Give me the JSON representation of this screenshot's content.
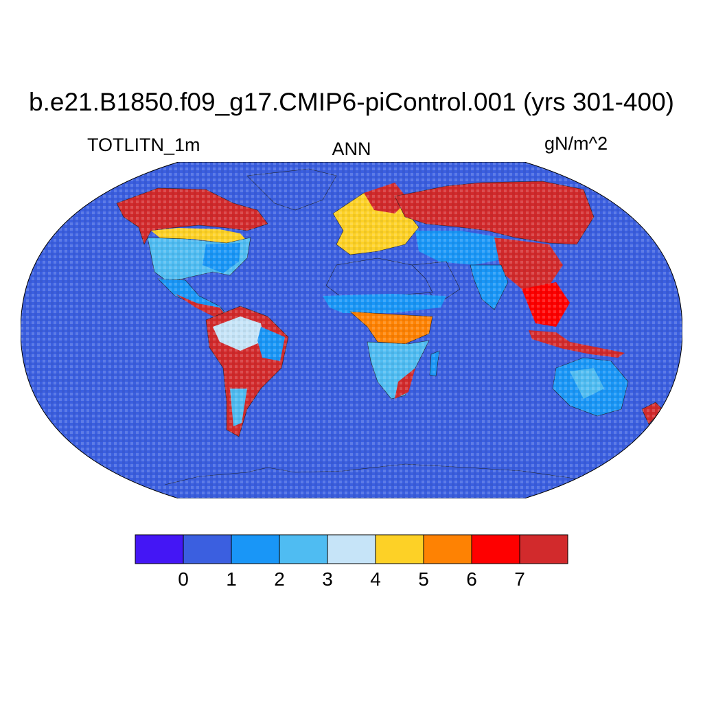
{
  "title": "b.e21.B1850.f09_g17.CMIP6-piControl.001 (yrs 301-400)",
  "subtitle_left": "TOTLITN_1m",
  "subtitle_center": "ANN",
  "subtitle_right": "gN/m^2",
  "ocean_color": "#3b5fe0",
  "colorbar": {
    "levels": [
      "0",
      "1",
      "2",
      "3",
      "4",
      "5",
      "6",
      "7"
    ],
    "colors": [
      "#4416f5",
      "#3b5fe0",
      "#1996f7",
      "#4fbcf2",
      "#c6e4f8",
      "#fdd126",
      "#fe8203",
      "#fe0000",
      "#d22a2c"
    ]
  },
  "regions": [
    {
      "name": "Canada boreal",
      "color": "#d22a2c"
    },
    {
      "name": "United States",
      "color": "#4fbcf2"
    },
    {
      "name": "Amazon",
      "color": "#c6e4f8"
    },
    {
      "name": "Sahara",
      "color": "#3b5fe0"
    },
    {
      "name": "Sahel",
      "color": "#1996f7"
    },
    {
      "name": "Congo",
      "color": "#fe8203"
    },
    {
      "name": "Southern Africa",
      "color": "#4fbcf2"
    },
    {
      "name": "Siberia",
      "color": "#d22a2c"
    },
    {
      "name": "Central Asia",
      "color": "#1996f7"
    },
    {
      "name": "Southeast Asia",
      "color": "#fe0000"
    },
    {
      "name": "Australia",
      "color": "#1996f7"
    },
    {
      "name": "Antarctica",
      "color": "#3b5fe0"
    }
  ]
}
